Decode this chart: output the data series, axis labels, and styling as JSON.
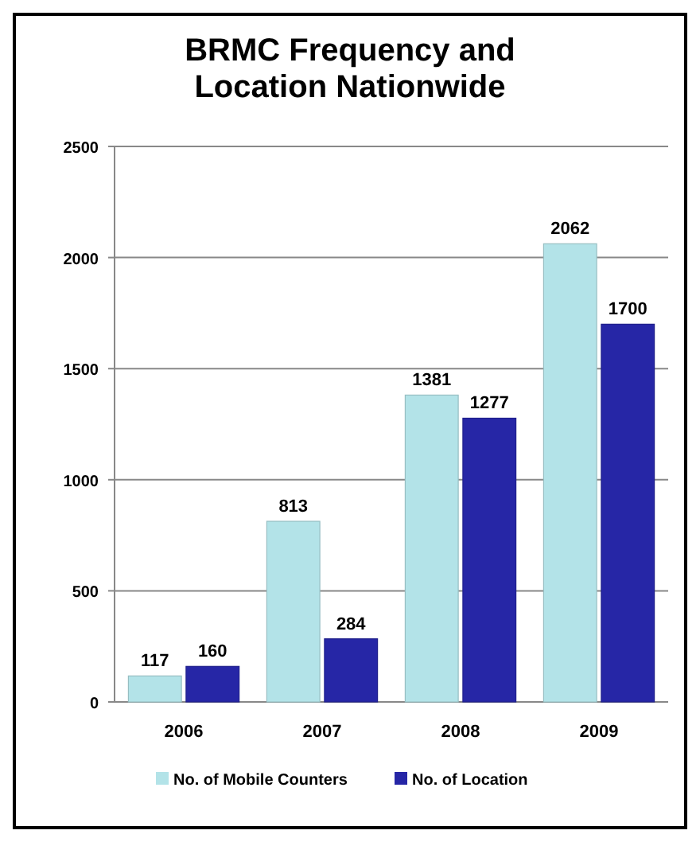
{
  "chart_data": {
    "type": "bar",
    "title": "BRMC Frequency and Location Nationwide",
    "categories": [
      "2006",
      "2007",
      "2008",
      "2009"
    ],
    "series": [
      {
        "name": "No. of Mobile Counters",
        "color": "#b3e3e8",
        "values": [
          117,
          813,
          1381,
          2062
        ]
      },
      {
        "name": "No. of Location",
        "color": "#2626a6",
        "values": [
          160,
          284,
          1277,
          1700
        ]
      }
    ],
    "ylim": [
      0,
      2500
    ],
    "yticks": [
      0,
      500,
      1000,
      1500,
      2000,
      2500
    ],
    "grid": "y",
    "legend": "bottom",
    "data_labels": true
  }
}
